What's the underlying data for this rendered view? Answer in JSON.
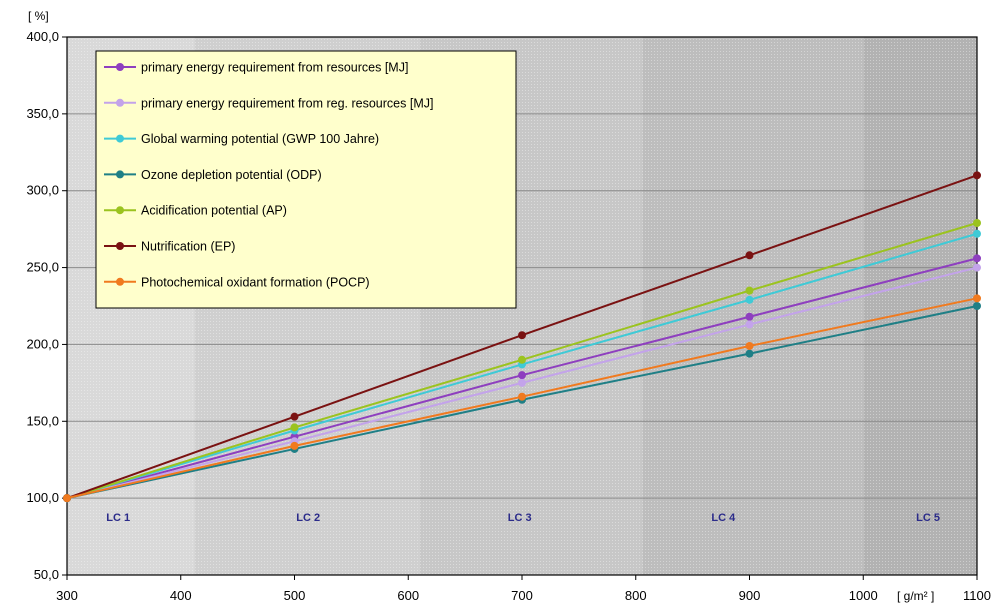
{
  "chart_data": {
    "type": "line",
    "y_unit_label": "[ %]",
    "x_unit_label": "[ g/m² ]",
    "x": [
      300,
      500,
      700,
      900,
      1100
    ],
    "xlim": [
      300,
      1100
    ],
    "ylim": [
      50,
      400
    ],
    "x_ticks": [
      {
        "value": 300,
        "label": "300"
      },
      {
        "value": 400,
        "label": "400"
      },
      {
        "value": 500,
        "label": "500"
      },
      {
        "value": 600,
        "label": "600"
      },
      {
        "value": 700,
        "label": "700"
      },
      {
        "value": 800,
        "label": "800"
      },
      {
        "value": 900,
        "label": "900"
      },
      {
        "value": 1000,
        "label": "1000"
      },
      {
        "value": 1100,
        "label": "1100"
      }
    ],
    "y_ticks": [
      {
        "value": 50,
        "label": "50,0"
      },
      {
        "value": 100,
        "label": "100,0"
      },
      {
        "value": 150,
        "label": "150,0"
      },
      {
        "value": 200,
        "label": "200,0"
      },
      {
        "value": 250,
        "label": "250,0"
      },
      {
        "value": 300,
        "label": "300,0"
      },
      {
        "value": 350,
        "label": "350,0"
      },
      {
        "value": 400,
        "label": "400,0"
      }
    ],
    "grid": true,
    "legend_position": "top-left",
    "bands": [
      {
        "label": "LC 1",
        "x_from": 300,
        "x_to": 412,
        "color": "#d9d9d9"
      },
      {
        "label": "LC 2",
        "x_from": 412,
        "x_to": 610,
        "color": "#cfcfcf"
      },
      {
        "label": "LC 3",
        "x_from": 610,
        "x_to": 806,
        "color": "#c7c7c7"
      },
      {
        "label": "LC 4",
        "x_from": 806,
        "x_to": 1000,
        "color": "#bdbdbd"
      },
      {
        "label": "LC 5",
        "x_from": 1000,
        "x_to": 1100,
        "color": "#b2b2b2"
      }
    ],
    "band_labels": [
      {
        "label": "LC 1",
        "x": 345
      },
      {
        "label": "LC 2",
        "x": 512
      },
      {
        "label": "LC 3",
        "x": 698
      },
      {
        "label": "LC 4",
        "x": 877
      },
      {
        "label": "LC 5",
        "x": 1057
      }
    ],
    "series": [
      {
        "name": "primary energy requirement from resources  [MJ]",
        "color": "#8e3fbf",
        "values": [
          100,
          140,
          180,
          218,
          256
        ]
      },
      {
        "name": "primary energy requirement from reg. resources  [MJ]",
        "color": "#c3a3ea",
        "values": [
          100,
          137,
          175,
          213,
          250
        ]
      },
      {
        "name": "Global warming potential (GWP 100 Jahre)",
        "color": "#3fcad6",
        "values": [
          100,
          144,
          187,
          229,
          272
        ]
      },
      {
        "name": "Ozone depletion potential (ODP)",
        "color": "#1f7f86",
        "values": [
          100,
          132,
          164,
          194,
          225
        ]
      },
      {
        "name": "Acidification potential (AP)",
        "color": "#9bc31f",
        "values": [
          100,
          146,
          190,
          235,
          279
        ]
      },
      {
        "name": "Nutrification (EP)",
        "color": "#7a1212",
        "values": [
          100,
          153,
          206,
          258,
          310
        ]
      },
      {
        "name": "Photochemical oxidant formation (POCP)",
        "color": "#f07a1f",
        "values": [
          100,
          134,
          166,
          199,
          230
        ]
      }
    ]
  }
}
